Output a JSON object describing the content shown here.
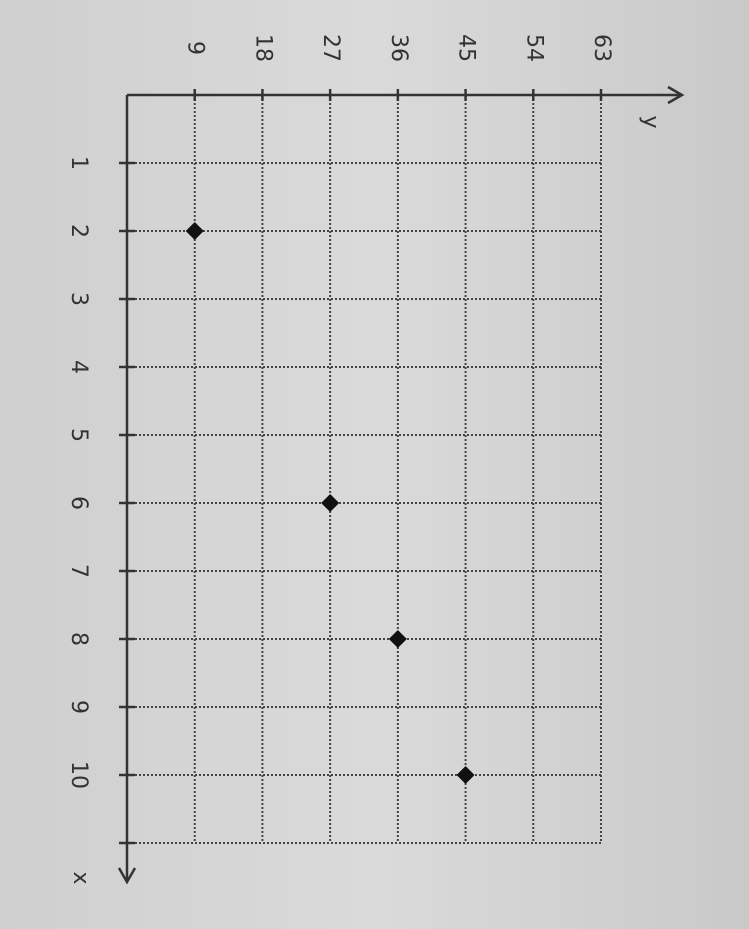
{
  "chart_data": {
    "type": "scatter",
    "x_label": "x",
    "y_label": "y",
    "x": [
      2,
      6,
      8,
      10
    ],
    "values": [
      9,
      27,
      36,
      45
    ],
    "color": "#111111",
    "xlim": [
      0,
      11
    ],
    "ylim": [
      0,
      63
    ],
    "xticks": [
      1,
      2,
      3,
      4,
      5,
      6,
      7,
      8,
      9,
      10
    ],
    "yticks": [
      9,
      18,
      27,
      36,
      45,
      54,
      63
    ],
    "grid": true
  }
}
